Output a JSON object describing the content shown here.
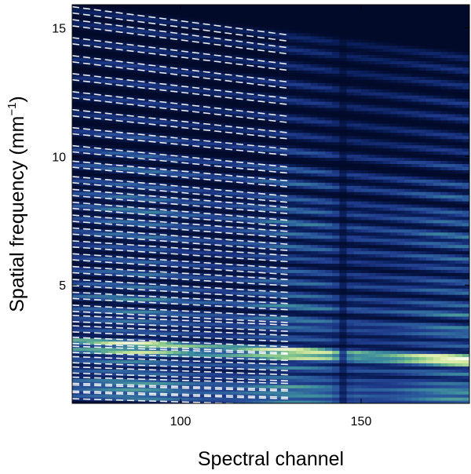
{
  "chart_data": {
    "type": "heatmap",
    "title": "",
    "xlabel": "Spectral channel",
    "ylabel_main": "Spatial frequency (mm",
    "ylabel_sup": "−1",
    "ylabel_close": ")",
    "xlim": [
      70,
      180
    ],
    "ylim": [
      0.4,
      15.9
    ],
    "xticks": [
      100,
      150
    ],
    "xtick_labels": [
      "100",
      "150"
    ],
    "yticks": [
      5,
      10,
      15
    ],
    "ytick_labels": [
      "5",
      "10",
      "15"
    ],
    "grid": false,
    "legend": "none",
    "colormap": [
      "#020a2a",
      "#0a1f5c",
      "#1f3a8a",
      "#2d5f9e",
      "#3f8f9e",
      "#7fc48a",
      "#d7e9a0",
      "#ffffff"
    ],
    "overlay_color": "#ffffff",
    "dashed_fit_lines_x_range": [
      70,
      130
    ],
    "vertical_dark_stripe_x": 145,
    "bands": [
      {
        "y0": 0.7,
        "intensity": 0.55,
        "slope": -0.004
      },
      {
        "y0": 1.0,
        "intensity": 0.6,
        "slope": -0.004
      },
      {
        "y0": 1.3,
        "intensity": 0.62,
        "slope": -0.004
      },
      {
        "y0": 1.7,
        "intensity": 0.5,
        "slope": -0.005
      },
      {
        "y0": 2.1,
        "intensity": 0.55,
        "slope": -0.005
      },
      {
        "y0": 2.5,
        "intensity": 0.85,
        "slope": -0.005
      },
      {
        "y0": 2.85,
        "intensity": 0.95,
        "slope": -0.006
      },
      {
        "y0": 3.3,
        "intensity": 0.45,
        "slope": -0.006
      },
      {
        "y0": 3.7,
        "intensity": 0.5,
        "slope": -0.006
      },
      {
        "y0": 4.1,
        "intensity": 0.55,
        "slope": -0.007
      },
      {
        "y0": 4.6,
        "intensity": 0.6,
        "slope": -0.007
      },
      {
        "y0": 5.1,
        "intensity": 0.5,
        "slope": -0.008
      },
      {
        "y0": 5.6,
        "intensity": 0.5,
        "slope": -0.008
      },
      {
        "y0": 6.1,
        "intensity": 0.45,
        "slope": -0.009
      },
      {
        "y0": 6.6,
        "intensity": 0.4,
        "slope": -0.009
      },
      {
        "y0": 7.1,
        "intensity": 0.5,
        "slope": -0.01
      },
      {
        "y0": 7.6,
        "intensity": 0.5,
        "slope": -0.01
      },
      {
        "y0": 8.1,
        "intensity": 0.55,
        "slope": -0.011
      },
      {
        "y0": 8.6,
        "intensity": 0.5,
        "slope": -0.011
      },
      {
        "y0": 9.1,
        "intensity": 0.45,
        "slope": -0.012
      },
      {
        "y0": 9.7,
        "intensity": 0.5,
        "slope": -0.012
      },
      {
        "y0": 10.3,
        "intensity": 0.45,
        "slope": -0.013
      },
      {
        "y0": 11.0,
        "intensity": 0.4,
        "slope": -0.013
      },
      {
        "y0": 11.7,
        "intensity": 0.3,
        "slope": -0.014
      },
      {
        "y0": 12.4,
        "intensity": 0.3,
        "slope": -0.015
      },
      {
        "y0": 13.1,
        "intensity": 0.3,
        "slope": -0.015
      },
      {
        "y0": 13.8,
        "intensity": 0.3,
        "slope": -0.016
      },
      {
        "y0": 14.5,
        "intensity": 0.25,
        "slope": -0.016
      },
      {
        "y0": 15.2,
        "intensity": 0.25,
        "slope": -0.017
      },
      {
        "y0": 15.7,
        "intensity": 0.2,
        "slope": -0.017
      }
    ]
  }
}
